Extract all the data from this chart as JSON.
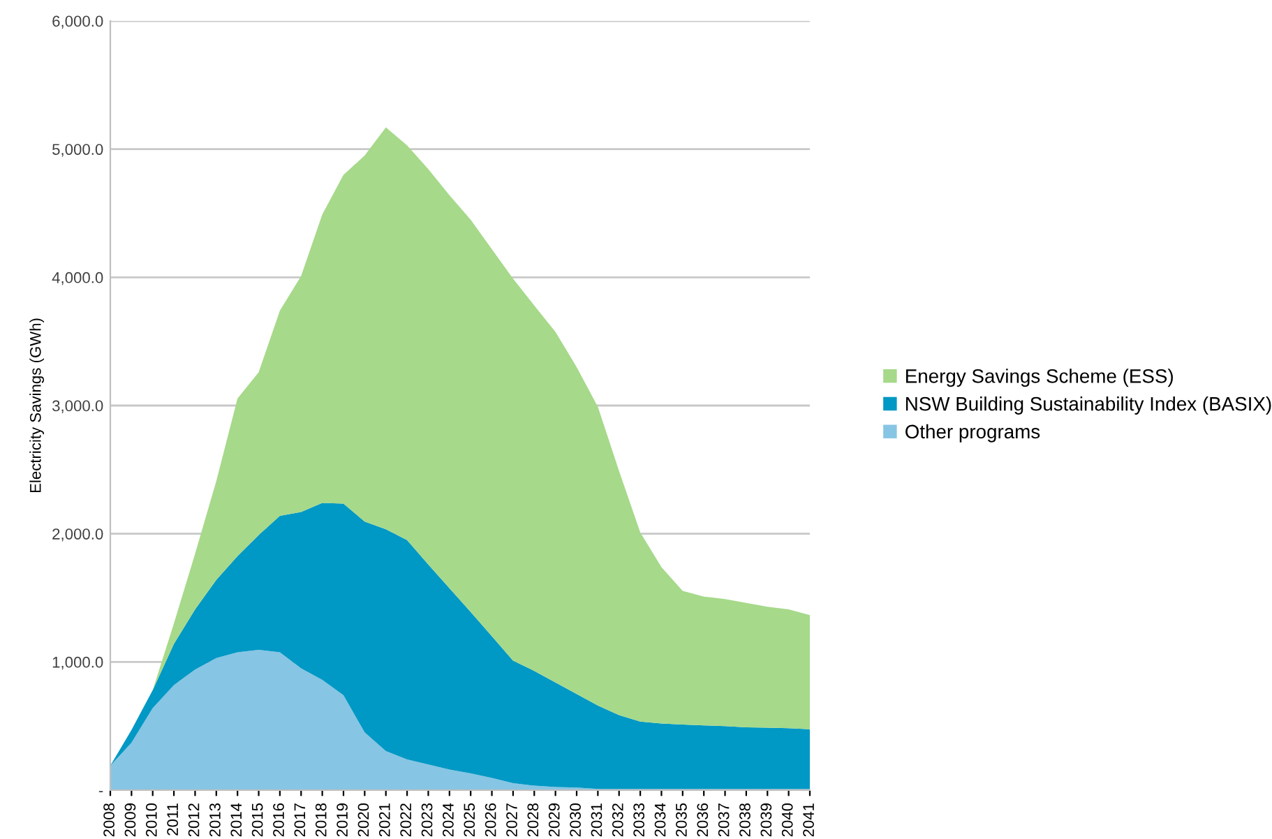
{
  "chart_data": {
    "type": "area",
    "stacked": true,
    "ylabel": "Electricity Savings (GWh)",
    "categories": [
      "2008",
      "2009",
      "2010",
      "2011",
      "2012",
      "2013",
      "2014",
      "2015",
      "2016",
      "2017",
      "2018",
      "2019",
      "2020",
      "2021",
      "2022",
      "2023",
      "2024",
      "2025",
      "2026",
      "2027",
      "2028",
      "2029",
      "2030",
      "2031",
      "2032",
      "2033",
      "2034",
      "2035",
      "2036",
      "2037",
      "2038",
      "2039",
      "2040",
      "2041"
    ],
    "series": [
      {
        "name": "Other programs",
        "color": "#87c5e4",
        "values": [
          190,
          370,
          640,
          820,
          940,
          1030,
          1075,
          1095,
          1075,
          950,
          860,
          740,
          450,
          305,
          240,
          200,
          160,
          130,
          95,
          55,
          35,
          25,
          20,
          10,
          10,
          10,
          10,
          10,
          10,
          10,
          10,
          10,
          10,
          10
        ]
      },
      {
        "name": "NSW Building Sustainability Index (BASIX)",
        "color": "#0098c4",
        "values": [
          0,
          100,
          140,
          320,
          470,
          610,
          750,
          895,
          1065,
          1220,
          1380,
          1495,
          1645,
          1730,
          1710,
          1560,
          1415,
          1260,
          1105,
          955,
          895,
          815,
          730,
          650,
          575,
          525,
          510,
          502,
          495,
          490,
          480,
          477,
          473,
          465
        ]
      },
      {
        "name": "Energy Savings Scheme (ESS)",
        "color": "#a6d98a",
        "values": [
          0,
          0,
          0,
          160,
          435,
          770,
          1230,
          1270,
          1600,
          1840,
          2250,
          2565,
          2855,
          3135,
          3080,
          3085,
          3065,
          3060,
          3020,
          2980,
          2850,
          2735,
          2550,
          2330,
          1905,
          1475,
          1220,
          1043,
          1005,
          990,
          970,
          943,
          927,
          890
        ]
      }
    ],
    "ylim": [
      0,
      6000
    ],
    "yticks": [
      {
        "value": 0,
        "label": "-"
      },
      {
        "value": 1000,
        "label": "1,000.0"
      },
      {
        "value": 2000,
        "label": "2,000.0"
      },
      {
        "value": 3000,
        "label": "3,000.0"
      },
      {
        "value": 4000,
        "label": "4,000.0"
      },
      {
        "value": 5000,
        "label": "5,000.0"
      },
      {
        "value": 6000,
        "label": "6,000.0"
      }
    ],
    "grid": "y",
    "legend": "right"
  }
}
